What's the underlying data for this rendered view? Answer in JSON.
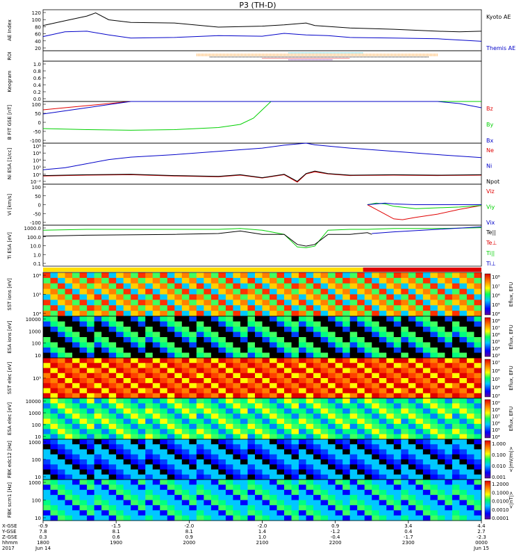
{
  "title": "P3 (TH-D)",
  "colors": {
    "black": "#000000",
    "blue": "#0000c8",
    "red": "#e00000",
    "green": "#00d000",
    "teal": "#00b8c8",
    "yellow": "#ffe000",
    "orange": "#ff8a00",
    "purple": "#6000a0"
  },
  "chart_data": [
    {
      "id": "ae",
      "type": "line",
      "ylabel": "AE Index",
      "yticks": [
        "120",
        "100",
        "80",
        "60",
        "40",
        "20"
      ],
      "ylim": [
        0,
        130
      ],
      "legend": [
        "Kyoto AE",
        "Themis AE"
      ],
      "series": [
        {
          "name": "Kyoto AE",
          "color": "#000000",
          "x": [
            0,
            0.05,
            0.1,
            0.12,
            0.15,
            0.2,
            0.3,
            0.4,
            0.5,
            0.55,
            0.6,
            0.62,
            0.66,
            0.7,
            0.8,
            0.9,
            0.95,
            1.0
          ],
          "y": [
            80,
            95,
            110,
            120,
            98,
            90,
            88,
            75,
            78,
            82,
            88,
            80,
            76,
            72,
            68,
            62,
            60,
            62
          ]
        },
        {
          "name": "Themis AE",
          "color": "#0000c8",
          "x": [
            0,
            0.05,
            0.1,
            0.15,
            0.2,
            0.3,
            0.4,
            0.5,
            0.55,
            0.6,
            0.65,
            0.7,
            0.8,
            0.9,
            1.0
          ],
          "y": [
            45,
            60,
            62,
            50,
            40,
            42,
            48,
            46,
            55,
            50,
            48,
            42,
            40,
            38,
            30
          ]
        }
      ]
    },
    {
      "id": "roi",
      "type": "scatter",
      "ylabel": "ROI",
      "bars": [
        {
          "x0": 0.56,
          "x1": 0.73,
          "color": "#00b8c8"
        },
        {
          "x0": 0.35,
          "x1": 0.9,
          "color": "#ff8a00"
        },
        {
          "x0": 0.35,
          "x1": 0.9,
          "color": "#ff8a00"
        },
        {
          "x0": 0.38,
          "x1": 0.88,
          "color": "#000000"
        },
        {
          "x0": 0.5,
          "x1": 0.7,
          "color": "#e00000"
        },
        {
          "x0": 0.56,
          "x1": 0.66,
          "color": "#6000a0"
        }
      ]
    },
    {
      "id": "keogram",
      "type": "line",
      "ylabel": "Keogram",
      "yticks": [
        "1.0",
        "0.8",
        "0.6",
        "0.4",
        "0.2",
        "0.0"
      ],
      "ylim": [
        0,
        1
      ]
    },
    {
      "id": "bfield",
      "type": "line",
      "ylabel": "B FIT GSE [nT]",
      "yticks": [
        "100",
        "50",
        "0",
        "-50",
        "-100"
      ],
      "ylim": [
        -100,
        100
      ],
      "legend": [
        "Bz",
        "By",
        "Bx"
      ],
      "series": [
        {
          "name": "Bz",
          "color": "#e00000",
          "x": [
            0,
            0.1,
            0.2
          ],
          "y": [
            60,
            80,
            100
          ]
        },
        {
          "name": "By",
          "color": "#00d000",
          "x": [
            0,
            0.1,
            0.2,
            0.3,
            0.4,
            0.45,
            0.48,
            0.5,
            0.52,
            0.54,
            0.6,
            0.68,
            0.7,
            0.72,
            0.8,
            0.9,
            0.95,
            1.0
          ],
          "y": [
            -30,
            -35,
            -38,
            -35,
            -25,
            -10,
            20,
            60,
            100,
            100,
            100,
            100,
            100,
            100,
            100,
            100,
            100,
            100
          ]
        },
        {
          "name": "Bx",
          "color": "#0000c8",
          "x": [
            0,
            0.1,
            0.2,
            0.3,
            0.9,
            0.95,
            1.0
          ],
          "y": [
            40,
            70,
            100,
            100,
            100,
            90,
            70
          ]
        }
      ]
    },
    {
      "id": "density",
      "type": "line",
      "ylabel": "Ni ESA [1/cc]",
      "yticks": [
        "10⁸",
        "10⁶",
        "10⁴",
        "10²",
        "10⁰",
        "10⁻²"
      ],
      "ylim": [
        -2,
        8
      ],
      "legend": [
        "Ne",
        "Ni",
        "Npot"
      ],
      "series": [
        {
          "name": "Ni",
          "color": "#0000c8",
          "x": [
            0,
            0.05,
            0.1,
            0.15,
            0.2,
            0.3,
            0.4,
            0.5,
            0.55,
            0.6,
            0.62,
            0.7,
            0.8,
            0.9,
            1.0
          ],
          "y": [
            1.5,
            2.0,
            3.0,
            4.0,
            4.6,
            5.2,
            6.0,
            6.8,
            7.5,
            8.0,
            7.6,
            6.8,
            6.0,
            5.2,
            4.5
          ]
        },
        {
          "name": "Ne",
          "color": "#e00000",
          "x": [
            0,
            0.1,
            0.2,
            0.3,
            0.4,
            0.45,
            0.5,
            0.55,
            0.58,
            0.6,
            0.62,
            0.65,
            0.7,
            0.8,
            0.9,
            1.0
          ],
          "y": [
            0,
            0.2,
            0.3,
            0,
            -0.2,
            0.2,
            -0.5,
            0.3,
            -1.5,
            0.5,
            1,
            0.5,
            0.1,
            0.2,
            0.1,
            0.2
          ]
        },
        {
          "name": "Npot",
          "color": "#000000",
          "x": [
            0,
            0.1,
            0.2,
            0.3,
            0.4,
            0.45,
            0.5,
            0.55,
            0.58,
            0.6,
            0.62,
            0.65,
            0.7,
            0.8,
            0.9,
            1.0
          ],
          "y": [
            0.1,
            0.3,
            0.4,
            0.1,
            -0.1,
            0.3,
            -0.4,
            0.4,
            -1.3,
            0.6,
            1.2,
            0.6,
            0.2,
            0.3,
            0.2,
            0.3
          ]
        }
      ]
    },
    {
      "id": "velocity",
      "type": "line",
      "ylabel": "Vi [km/s]",
      "yticks": [
        "100",
        "50",
        "0",
        "-50",
        "-100"
      ],
      "ylim": [
        -130,
        130
      ],
      "legend": [
        "Viz",
        "Viy",
        "Vix"
      ],
      "series": [
        {
          "name": "Viz",
          "color": "#e00000",
          "x": [
            0.74,
            0.76,
            0.78,
            0.8,
            0.82,
            0.85,
            0.9,
            0.95,
            1.0
          ],
          "y": [
            0,
            -30,
            -60,
            -90,
            -95,
            -80,
            -60,
            -30,
            -5
          ]
        },
        {
          "name": "Viy",
          "color": "#00d000",
          "x": [
            0.74,
            0.76,
            0.78,
            0.8,
            0.85,
            0.9,
            0.95,
            1.0
          ],
          "y": [
            0,
            10,
            5,
            -10,
            -25,
            -20,
            -15,
            -5
          ]
        },
        {
          "name": "Vix",
          "color": "#0000c8",
          "x": [
            0.74,
            0.78,
            0.8,
            0.85,
            0.9,
            1.0
          ],
          "y": [
            0,
            10,
            5,
            0,
            0,
            0
          ]
        }
      ]
    },
    {
      "id": "temp",
      "type": "line",
      "ylabel": "Ti ESA [eV]",
      "yticks": [
        "1000.0",
        "100.0",
        "10.0",
        "1.0",
        "0.1"
      ],
      "ylim": [
        -1.2,
        3.7
      ],
      "legend": [
        "Te||",
        "Te⊥",
        "Ti||",
        "Ti⊥"
      ],
      "series": [
        {
          "name": "Ti||",
          "color": "#00d000",
          "x": [
            0,
            0.1,
            0.3,
            0.4,
            0.45,
            0.5,
            0.55,
            0.58,
            0.6,
            0.62,
            0.65,
            0.7,
            0.74,
            0.8,
            0.9,
            1.0
          ],
          "y": [
            3.1,
            3.2,
            3.2,
            3.2,
            3.3,
            3.1,
            2.6,
            1.1,
            1.0,
            1.2,
            3.1,
            3.2,
            3.2,
            3.3,
            3.3,
            3.4
          ]
        },
        {
          "name": "Te||",
          "color": "#000000",
          "x": [
            0,
            0.1,
            0.3,
            0.4,
            0.45,
            0.5,
            0.55,
            0.58,
            0.6,
            0.62,
            0.65,
            0.7,
            0.74,
            0.75
          ],
          "y": [
            2.4,
            2.5,
            2.6,
            2.7,
            3.0,
            2.6,
            2.6,
            1.4,
            1.2,
            1.4,
            2.6,
            2.6,
            2.8,
            2.6
          ]
        },
        {
          "name": "Ti⊥",
          "color": "#0000c8",
          "x": [
            0.75,
            0.8,
            0.9,
            1.0
          ],
          "y": [
            2.7,
            2.9,
            3.2,
            3.5
          ]
        }
      ]
    },
    {
      "id": "sst_eflux_1",
      "type": "heatmap",
      "ylabel": "SST ions [eV]",
      "yticks": [
        "10⁶",
        "10⁵",
        "10⁴"
      ],
      "cbar_label": "Eflux, EFU",
      "cbar_ticks": [
        "10⁸",
        "10⁷",
        "10⁶",
        "10⁵",
        "10⁴"
      ]
    },
    {
      "id": "esa_ions",
      "type": "heatmap",
      "ylabel": "ESA ions [eV]",
      "yticks": [
        "10000",
        "1000",
        "100",
        "10"
      ],
      "cbar_label": "Eflux, EFU",
      "cbar_ticks": [
        "10⁸",
        "10⁷",
        "10⁶",
        "10⁵",
        "10⁴",
        "10³"
      ]
    },
    {
      "id": "sst_elec",
      "type": "heatmap",
      "ylabel": "SST elec [eV]",
      "yticks": [
        "10⁵"
      ],
      "cbar_label": "Eflux, EFU",
      "cbar_ticks": [
        "10⁷",
        "10⁶",
        "10⁵",
        "10⁴",
        "10³"
      ]
    },
    {
      "id": "esa_elec",
      "type": "heatmap",
      "ylabel": "ESA elec [eV]",
      "yticks": [
        "10000",
        "1000",
        "100",
        "10"
      ],
      "cbar_label": "Eflux, EFU",
      "cbar_ticks": [
        "10⁹",
        "10⁸",
        "10⁷",
        "10⁶",
        "10⁵",
        "10⁴"
      ]
    },
    {
      "id": "fbk_e",
      "type": "heatmap",
      "ylabel": "FBK edc12 [Hz]",
      "yticks": [
        "1000",
        "100",
        "10"
      ],
      "cbar_label": "<|mV/m|>",
      "cbar_ticks": [
        "1.000",
        "0.100",
        "0.010",
        "0.001"
      ]
    },
    {
      "id": "fbk_b",
      "type": "heatmap",
      "ylabel": "FBK scm1 [Hz]",
      "yticks": [
        "1000",
        "100",
        "10"
      ],
      "cbar_label": "<|nT|>",
      "cbar_ticks": [
        "1.2000",
        "0.1000",
        "0.0100",
        "0.0010",
        "0.0001"
      ]
    }
  ],
  "xaxis": {
    "row_labels": [
      "X-GSE",
      "Y-GSE",
      "Z-GSE",
      "hhmm",
      "2017"
    ],
    "ticks": [
      {
        "x": 0.0,
        "vals": [
          "-0.9",
          "7.8",
          "0.3",
          "1800",
          "Jun 14"
        ]
      },
      {
        "x": 0.2,
        "vals": [
          "-1.5",
          "8.1",
          "0.6",
          "1900",
          ""
        ]
      },
      {
        "x": 0.4,
        "vals": [
          "-2.0",
          "8.1",
          "0.9",
          "2000",
          ""
        ]
      },
      {
        "x": 0.6,
        "vals": [
          "-2.0",
          "1.4",
          "1.0",
          "2100",
          ""
        ]
      },
      {
        "x": 0.8,
        "vals": [
          "0.9",
          "-1.2",
          "-0.4",
          "2200",
          ""
        ]
      },
      {
        "x": 1.0,
        "vals": [
          "3.4",
          "0.4",
          "-1.7",
          "2300",
          ""
        ]
      },
      {
        "x": 1.2,
        "vals": [
          "4.4",
          "2.7",
          "-2.3",
          "0000",
          "Jun 15"
        ]
      }
    ]
  }
}
